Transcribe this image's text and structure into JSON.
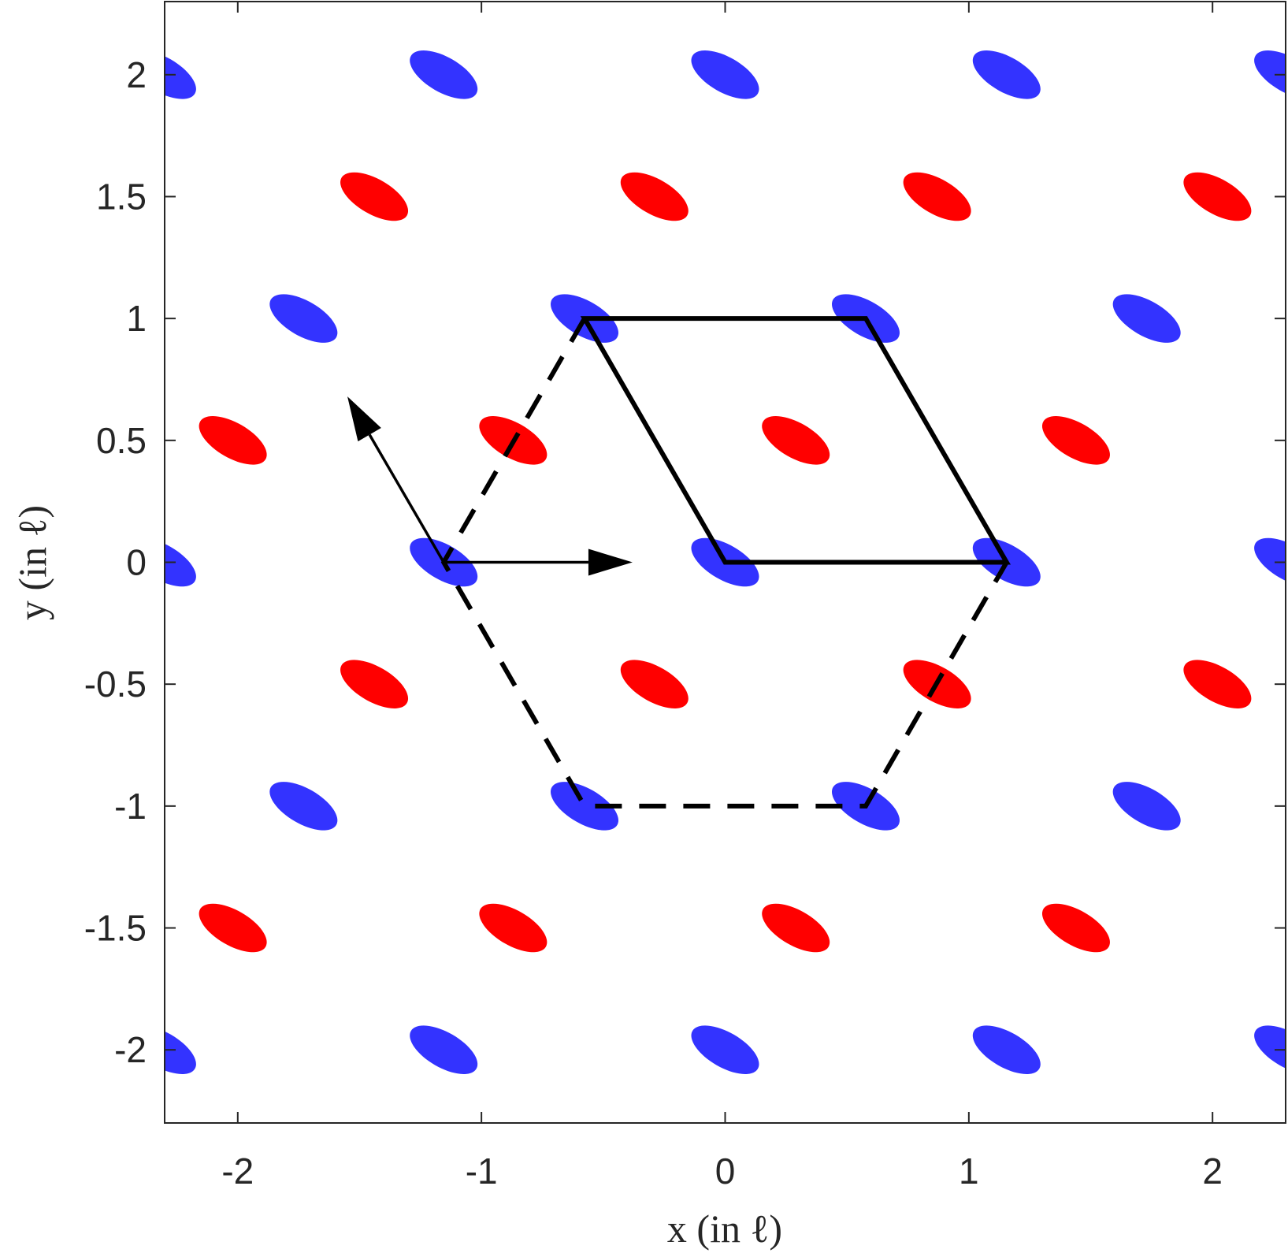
{
  "chart_data": {
    "type": "scatter",
    "xlabel": "x (in ℓ)",
    "ylabel": "y (in ℓ)",
    "xlim": [
      -2.3,
      2.3
    ],
    "ylim": [
      -2.3,
      2.3
    ],
    "xticks": [
      -2,
      -1,
      0,
      1,
      2
    ],
    "xtick_labels": [
      "-2",
      "-1",
      "0",
      "1",
      "2"
    ],
    "yticks": [
      -2,
      -1.5,
      -1,
      -0.5,
      0,
      0.5,
      1,
      1.5,
      2
    ],
    "ytick_labels": [
      "-2",
      "-1.5",
      "-1",
      "-0.5",
      "0",
      "0.5",
      "1",
      "1.5",
      "2"
    ],
    "grid": false,
    "colors": {
      "blue": "#3333ff",
      "red": "#ff0000",
      "lines": "#000000",
      "axes": "#262626"
    },
    "blue_ellipses": [
      [
        -2.31,
        2.0
      ],
      [
        -1.155,
        2.0
      ],
      [
        0.0,
        2.0
      ],
      [
        1.155,
        2.0
      ],
      [
        2.31,
        2.0
      ],
      [
        -1.73,
        1.0
      ],
      [
        -0.577,
        1.0
      ],
      [
        0.577,
        1.0
      ],
      [
        1.73,
        1.0
      ],
      [
        -2.31,
        0.0
      ],
      [
        -1.155,
        0.0
      ],
      [
        0.0,
        0.0
      ],
      [
        1.155,
        0.0
      ],
      [
        2.31,
        0.0
      ],
      [
        -1.73,
        -1.0
      ],
      [
        -0.577,
        -1.0
      ],
      [
        0.577,
        -1.0
      ],
      [
        1.73,
        -1.0
      ],
      [
        -2.31,
        -2.0
      ],
      [
        -1.155,
        -2.0
      ],
      [
        0.0,
        -2.0
      ],
      [
        1.155,
        -2.0
      ],
      [
        2.31,
        -2.0
      ]
    ],
    "red_ellipses": [
      [
        -1.44,
        1.5
      ],
      [
        -0.29,
        1.5
      ],
      [
        0.87,
        1.5
      ],
      [
        2.02,
        1.5
      ],
      [
        -2.02,
        0.5
      ],
      [
        -0.87,
        0.5
      ],
      [
        0.29,
        0.5
      ],
      [
        1.44,
        0.5
      ],
      [
        -1.44,
        -0.5
      ],
      [
        -0.29,
        -0.5
      ],
      [
        0.87,
        -0.5
      ],
      [
        2.02,
        -0.5
      ],
      [
        -2.02,
        -1.5
      ],
      [
        -0.87,
        -1.5
      ],
      [
        0.29,
        -1.5
      ],
      [
        1.44,
        -1.5
      ]
    ],
    "ellipse_shape": {
      "semi_major": 0.155,
      "semi_minor": 0.072,
      "angle_deg": -30
    },
    "unit_cell": [
      [
        0.0,
        0.0
      ],
      [
        1.155,
        0.0
      ],
      [
        0.577,
        1.0
      ],
      [
        -0.577,
        1.0
      ]
    ],
    "hexagon": [
      [
        -0.577,
        1.0
      ],
      [
        -1.155,
        0.0
      ],
      [
        -0.577,
        -1.0
      ],
      [
        0.577,
        -1.0
      ],
      [
        1.155,
        0.0
      ]
    ],
    "vectors": [
      {
        "from": [
          -1.155,
          0.0
        ],
        "to": [
          -0.38,
          0.0
        ]
      },
      {
        "from": [
          -1.155,
          0.0
        ],
        "to": [
          -1.55,
          0.68
        ]
      }
    ]
  }
}
